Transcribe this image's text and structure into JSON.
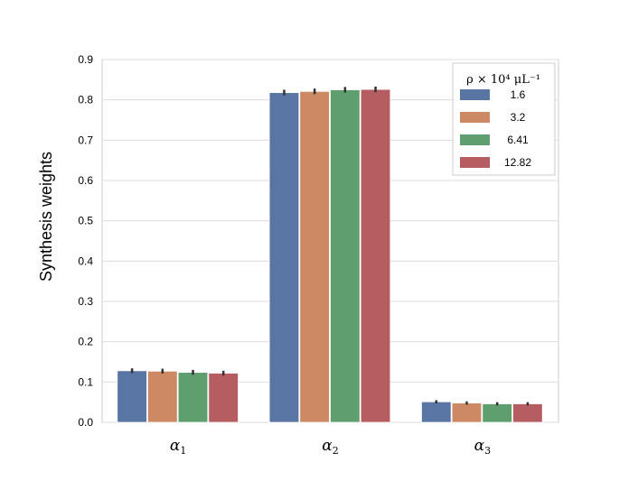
{
  "chart_data": {
    "type": "bar",
    "ylabel": "Synthesis weights",
    "ylim": [
      0,
      0.9
    ],
    "yticks": [
      "0.0",
      "0.1",
      "0.2",
      "0.3",
      "0.4",
      "0.5",
      "0.6",
      "0.7",
      "0.8",
      "0.9"
    ],
    "grid": true,
    "categories": [
      {
        "base": "α",
        "sub": "1"
      },
      {
        "base": "α",
        "sub": "2"
      },
      {
        "base": "α",
        "sub": "3"
      }
    ],
    "legend": {
      "title": "ρ × 10⁴ μL⁻¹",
      "placement": "top-right"
    },
    "series": [
      {
        "name": "1.6",
        "color": "#5875a4",
        "values": [
          0.128,
          0.818,
          0.051
        ],
        "errors": [
          0.006,
          0.007,
          0.004
        ]
      },
      {
        "name": "3.2",
        "color": "#cc8963",
        "values": [
          0.127,
          0.821,
          0.048
        ],
        "errors": [
          0.006,
          0.007,
          0.004
        ]
      },
      {
        "name": "6.41",
        "color": "#5f9e6e",
        "values": [
          0.124,
          0.825,
          0.046
        ],
        "errors": [
          0.006,
          0.007,
          0.004
        ]
      },
      {
        "name": "12.82",
        "color": "#b55d60",
        "values": [
          0.122,
          0.826,
          0.046
        ],
        "errors": [
          0.006,
          0.007,
          0.004
        ]
      }
    ]
  }
}
